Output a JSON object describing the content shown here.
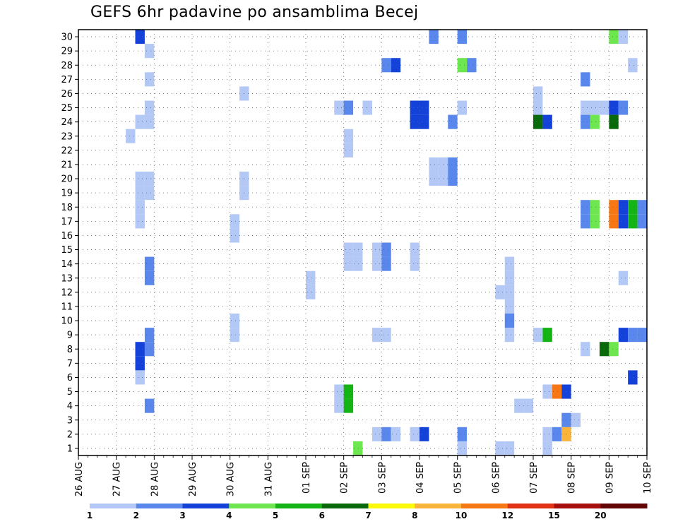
{
  "chart_data": {
    "type": "heatmap",
    "title": "GEFS 6hr padavine po ansamblima Becej",
    "x_tick_labels": [
      "26 AUG",
      "27 AUG",
      "28 AUG",
      "29 AUG",
      "30 AUG",
      "31 AUG",
      "01 SEP",
      "02 SEP",
      "03 SEP",
      "04 SEP",
      "05 SEP",
      "06 SEP",
      "07 SEP",
      "08 SEP",
      "09 SEP",
      "10 SEP"
    ],
    "y_tick_labels": [
      "1",
      "2",
      "3",
      "4",
      "5",
      "6",
      "7",
      "8",
      "9",
      "10",
      "11",
      "12",
      "13",
      "14",
      "15",
      "16",
      "17",
      "18",
      "19",
      "20",
      "21",
      "22",
      "23",
      "24",
      "25",
      "26",
      "27",
      "28",
      "29",
      "30"
    ],
    "x_unit": "6-hour step from 26 AUG 00z",
    "xlim": [
      0,
      60
    ],
    "ylim": [
      0.5,
      30.5
    ],
    "grid": true,
    "legend": {
      "placement": "bottom",
      "boundaries": [
        "1",
        "2",
        "3",
        "4",
        "5",
        "6",
        "7",
        "8",
        "10",
        "12",
        "15",
        "20"
      ],
      "colors": [
        "#b4c8f5",
        "#5a87eb",
        "#1441d7",
        "#6ee650",
        "#14b414",
        "#0a690a",
        "#fafa0a",
        "#fab43c",
        "#f57814",
        "#e13214",
        "#a50f0f",
        "#640505"
      ]
    },
    "cells": [
      {
        "step": 6,
        "member": 30,
        "bin": 3
      },
      {
        "step": 7,
        "member": 29,
        "bin": 1
      },
      {
        "step": 7,
        "member": 27,
        "bin": 1
      },
      {
        "step": 7,
        "member": 25,
        "bin": 1
      },
      {
        "step": 6,
        "member": 24,
        "bin": 1
      },
      {
        "step": 7,
        "member": 24,
        "bin": 1
      },
      {
        "step": 5,
        "member": 23,
        "bin": 1
      },
      {
        "step": 6,
        "member": 20,
        "bin": 1
      },
      {
        "step": 7,
        "member": 20,
        "bin": 1
      },
      {
        "step": 6,
        "member": 19,
        "bin": 1
      },
      {
        "step": 7,
        "member": 19,
        "bin": 1
      },
      {
        "step": 6,
        "member": 18,
        "bin": 1
      },
      {
        "step": 6,
        "member": 17,
        "bin": 1
      },
      {
        "step": 7,
        "member": 14,
        "bin": 2
      },
      {
        "step": 7,
        "member": 13,
        "bin": 2
      },
      {
        "step": 7,
        "member": 9,
        "bin": 2
      },
      {
        "step": 7,
        "member": 8,
        "bin": 2
      },
      {
        "step": 6,
        "member": 8,
        "bin": 3
      },
      {
        "step": 6,
        "member": 7,
        "bin": 3
      },
      {
        "step": 6,
        "member": 6,
        "bin": 1
      },
      {
        "step": 7,
        "member": 4,
        "bin": 2
      },
      {
        "step": 17,
        "member": 26,
        "bin": 1
      },
      {
        "step": 17,
        "member": 20,
        "bin": 1
      },
      {
        "step": 17,
        "member": 19,
        "bin": 1
      },
      {
        "step": 16,
        "member": 17,
        "bin": 1
      },
      {
        "step": 16,
        "member": 16,
        "bin": 1
      },
      {
        "step": 16,
        "member": 10,
        "bin": 1
      },
      {
        "step": 16,
        "member": 9,
        "bin": 1
      },
      {
        "step": 24,
        "member": 13,
        "bin": 1
      },
      {
        "step": 24,
        "member": 12,
        "bin": 1
      },
      {
        "step": 27,
        "member": 25,
        "bin": 1
      },
      {
        "step": 28,
        "member": 25,
        "bin": 2
      },
      {
        "step": 30,
        "member": 25,
        "bin": 1
      },
      {
        "step": 28,
        "member": 23,
        "bin": 1
      },
      {
        "step": 28,
        "member": 22,
        "bin": 1
      },
      {
        "step": 28,
        "member": 15,
        "bin": 1
      },
      {
        "step": 29,
        "member": 15,
        "bin": 1
      },
      {
        "step": 28,
        "member": 14,
        "bin": 1
      },
      {
        "step": 29,
        "member": 14,
        "bin": 1
      },
      {
        "step": 27,
        "member": 5,
        "bin": 1
      },
      {
        "step": 27,
        "member": 4,
        "bin": 1
      },
      {
        "step": 28,
        "member": 5,
        "bin": 5
      },
      {
        "step": 28,
        "member": 4,
        "bin": 5
      },
      {
        "step": 29,
        "member": 1,
        "bin": 4
      },
      {
        "step": 32,
        "member": 28,
        "bin": 2
      },
      {
        "step": 33,
        "member": 28,
        "bin": 3
      },
      {
        "step": 31,
        "member": 15,
        "bin": 1
      },
      {
        "step": 32,
        "member": 15,
        "bin": 2
      },
      {
        "step": 31,
        "member": 14,
        "bin": 1
      },
      {
        "step": 32,
        "member": 14,
        "bin": 2
      },
      {
        "step": 31,
        "member": 9,
        "bin": 1
      },
      {
        "step": 32,
        "member": 9,
        "bin": 1
      },
      {
        "step": 31,
        "member": 2,
        "bin": 1
      },
      {
        "step": 32,
        "member": 2,
        "bin": 2
      },
      {
        "step": 33,
        "member": 2,
        "bin": 1
      },
      {
        "step": 35,
        "member": 25,
        "bin": 3
      },
      {
        "step": 36,
        "member": 25,
        "bin": 3
      },
      {
        "step": 35,
        "member": 24,
        "bin": 3
      },
      {
        "step": 36,
        "member": 24,
        "bin": 3
      },
      {
        "step": 35,
        "member": 15,
        "bin": 1
      },
      {
        "step": 35,
        "member": 14,
        "bin": 1
      },
      {
        "step": 35,
        "member": 2,
        "bin": 1
      },
      {
        "step": 36,
        "member": 2,
        "bin": 3
      },
      {
        "step": 37,
        "member": 30,
        "bin": 2
      },
      {
        "step": 37,
        "member": 21,
        "bin": 1
      },
      {
        "step": 38,
        "member": 21,
        "bin": 1
      },
      {
        "step": 37,
        "member": 20,
        "bin": 1
      },
      {
        "step": 38,
        "member": 20,
        "bin": 1
      },
      {
        "step": 39,
        "member": 21,
        "bin": 2
      },
      {
        "step": 39,
        "member": 20,
        "bin": 2
      },
      {
        "step": 39,
        "member": 24,
        "bin": 2
      },
      {
        "step": 40,
        "member": 30,
        "bin": 2
      },
      {
        "step": 40,
        "member": 28,
        "bin": 4
      },
      {
        "step": 41,
        "member": 28,
        "bin": 2
      },
      {
        "step": 40,
        "member": 25,
        "bin": 1
      },
      {
        "step": 40,
        "member": 2,
        "bin": 2
      },
      {
        "step": 40,
        "member": 1,
        "bin": 1
      },
      {
        "step": 44,
        "member": 12,
        "bin": 1
      },
      {
        "step": 45,
        "member": 14,
        "bin": 1
      },
      {
        "step": 45,
        "member": 13,
        "bin": 1
      },
      {
        "step": 45,
        "member": 12,
        "bin": 1
      },
      {
        "step": 45,
        "member": 11,
        "bin": 1
      },
      {
        "step": 45,
        "member": 10,
        "bin": 2
      },
      {
        "step": 45,
        "member": 9,
        "bin": 1
      },
      {
        "step": 44,
        "member": 1,
        "bin": 1
      },
      {
        "step": 45,
        "member": 1,
        "bin": 1
      },
      {
        "step": 46,
        "member": 4,
        "bin": 1
      },
      {
        "step": 47,
        "member": 4,
        "bin": 1
      },
      {
        "step": 48,
        "member": 26,
        "bin": 1
      },
      {
        "step": 48,
        "member": 25,
        "bin": 1
      },
      {
        "step": 48,
        "member": 9,
        "bin": 1
      },
      {
        "step": 49,
        "member": 9,
        "bin": 5
      },
      {
        "step": 48,
        "member": 24,
        "bin": 6
      },
      {
        "step": 49,
        "member": 24,
        "bin": 3
      },
      {
        "step": 49,
        "member": 5,
        "bin": 1
      },
      {
        "step": 50,
        "member": 5,
        "bin": 9
      },
      {
        "step": 51,
        "member": 5,
        "bin": 3
      },
      {
        "step": 49,
        "member": 2,
        "bin": 1
      },
      {
        "step": 49,
        "member": 1,
        "bin": 1
      },
      {
        "step": 50,
        "member": 2,
        "bin": 2
      },
      {
        "step": 51,
        "member": 2,
        "bin": 8
      },
      {
        "step": 51,
        "member": 3,
        "bin": 2
      },
      {
        "step": 52,
        "member": 3,
        "bin": 1
      },
      {
        "step": 53,
        "member": 27,
        "bin": 2
      },
      {
        "step": 53,
        "member": 25,
        "bin": 1
      },
      {
        "step": 54,
        "member": 25,
        "bin": 1
      },
      {
        "step": 55,
        "member": 25,
        "bin": 1
      },
      {
        "step": 56,
        "member": 25,
        "bin": 3
      },
      {
        "step": 57,
        "member": 25,
        "bin": 2
      },
      {
        "step": 53,
        "member": 24,
        "bin": 2
      },
      {
        "step": 54,
        "member": 24,
        "bin": 4
      },
      {
        "step": 56,
        "member": 24,
        "bin": 6
      },
      {
        "step": 53,
        "member": 18,
        "bin": 2
      },
      {
        "step": 54,
        "member": 18,
        "bin": 4
      },
      {
        "step": 56,
        "member": 18,
        "bin": 9
      },
      {
        "step": 57,
        "member": 18,
        "bin": 3
      },
      {
        "step": 58,
        "member": 18,
        "bin": 5
      },
      {
        "step": 59,
        "member": 18,
        "bin": 2
      },
      {
        "step": 53,
        "member": 17,
        "bin": 2
      },
      {
        "step": 54,
        "member": 17,
        "bin": 4
      },
      {
        "step": 56,
        "member": 17,
        "bin": 9
      },
      {
        "step": 57,
        "member": 17,
        "bin": 3
      },
      {
        "step": 58,
        "member": 17,
        "bin": 5
      },
      {
        "step": 59,
        "member": 17,
        "bin": 2
      },
      {
        "step": 53,
        "member": 8,
        "bin": 1
      },
      {
        "step": 55,
        "member": 8,
        "bin": 6
      },
      {
        "step": 56,
        "member": 8,
        "bin": 4
      },
      {
        "step": 57,
        "member": 9,
        "bin": 3
      },
      {
        "step": 58,
        "member": 9,
        "bin": 2
      },
      {
        "step": 59,
        "member": 9,
        "bin": 2
      },
      {
        "step": 58,
        "member": 6,
        "bin": 3
      },
      {
        "step": 56,
        "member": 30,
        "bin": 4
      },
      {
        "step": 57,
        "member": 30,
        "bin": 1
      },
      {
        "step": 58,
        "member": 28,
        "bin": 1
      },
      {
        "step": 57,
        "member": 13,
        "bin": 1
      }
    ]
  }
}
